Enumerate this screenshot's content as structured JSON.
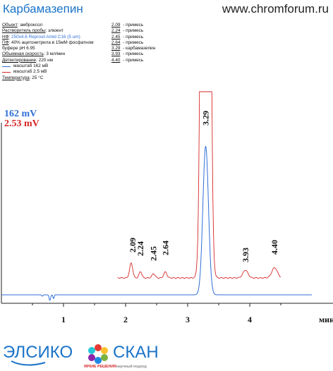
{
  "header": {
    "title": "Карбамазепин",
    "site": "www.chromforum.ru"
  },
  "conditions": [
    {
      "key": "Объект",
      "sep": ": ",
      "value": "амброксол",
      "blue": false
    },
    {
      "key": "Растворитель пробы",
      "sep": ": ",
      "value": "элюент",
      "blue": false
    },
    {
      "key": "НФ",
      "sep": ": ",
      "value": "250x4.6 Reprosil Amid C16  (5 um)",
      "blue": true
    },
    {
      "key": "ПФ",
      "sep": ": ",
      "value": "40% ацетонитрила в 15мМ фосфатном",
      "blue": false
    },
    {
      "key": "",
      "sep": "",
      "value": "буфере pH 6.95",
      "blue": false
    },
    {
      "key": "Объемная скорость",
      "sep": ": ",
      "value": "3 мл/мин",
      "blue": false
    },
    {
      "key": "Детектирование",
      "sep": ": ",
      "value": "220 нм",
      "blue": false
    }
  ],
  "legend": [
    {
      "label": "масштаб 162 мВ",
      "color": "#2f6fd6"
    },
    {
      "label": "масштаб 2.5 мВ",
      "color": "#d62828"
    }
  ],
  "temperature": {
    "key": "Температура",
    "value": ": 25 °C"
  },
  "peak_table": [
    {
      "time": "2.09",
      "name": " - примесь"
    },
    {
      "time": "2.24",
      "name": " - примесь"
    },
    {
      "time": "2.45",
      "name": " - примесь"
    },
    {
      "time": "2.64",
      "name": " - примесь"
    },
    {
      "time": "3.29",
      "name": " - карбамазепин"
    },
    {
      "time": "3.93",
      "name": " - примесь"
    },
    {
      "time": "4.40",
      "name": " - примесь"
    }
  ],
  "logo": {
    "left": "ЭЛСИКО",
    "right": "СКАН",
    "tagline_red": "ЯРКИЕ РЕШЕНИЯ",
    "tagline_gray": "научный подход"
  },
  "chart_data": {
    "type": "line",
    "xlabel": "мин",
    "x_ticks": [
      "1",
      "2",
      "3",
      "4"
    ],
    "xlim": [
      0,
      5.0
    ],
    "scale_labels": [
      {
        "text": "162 mV",
        "color": "#2f6fd6"
      },
      {
        "text": "2.53 mV",
        "color": "#d62828"
      }
    ],
    "peak_labels": [
      "2.09",
      "2.24",
      "2.45",
      "2.64",
      "3.29",
      "3.93",
      "4.40"
    ],
    "series": [
      {
        "name": "масштаб 162 мВ",
        "color": "#2f6fd6",
        "baseline": 2,
        "x_range": [
          0,
          5.0
        ],
        "dips": [
          {
            "t": 0.78,
            "h": -6,
            "w": 0.012
          },
          {
            "t": 0.84,
            "h": -4,
            "w": 0.01
          },
          {
            "t": 0.66,
            "h": -1.5,
            "w": 0.01
          }
        ],
        "peaks": [
          {
            "t": 3.29,
            "h": 162,
            "w": 0.045
          }
        ]
      },
      {
        "name": "масштаб 2.5 мВ",
        "color": "#d62828",
        "baseline": 0,
        "x_range": [
          1.87,
          4.5
        ],
        "peaks": [
          {
            "t": 2.09,
            "h": 1.05,
            "w": 0.025
          },
          {
            "t": 2.24,
            "h": 0.45,
            "w": 0.022
          },
          {
            "t": 2.45,
            "h": 0.3,
            "w": 0.025
          },
          {
            "t": 2.64,
            "h": 0.42,
            "w": 0.025
          },
          {
            "t": 3.29,
            "h": 160,
            "w": 0.045
          },
          {
            "t": 3.93,
            "h": 0.55,
            "w": 0.04
          },
          {
            "t": 4.4,
            "h": 0.72,
            "w": 0.045
          }
        ]
      }
    ]
  }
}
